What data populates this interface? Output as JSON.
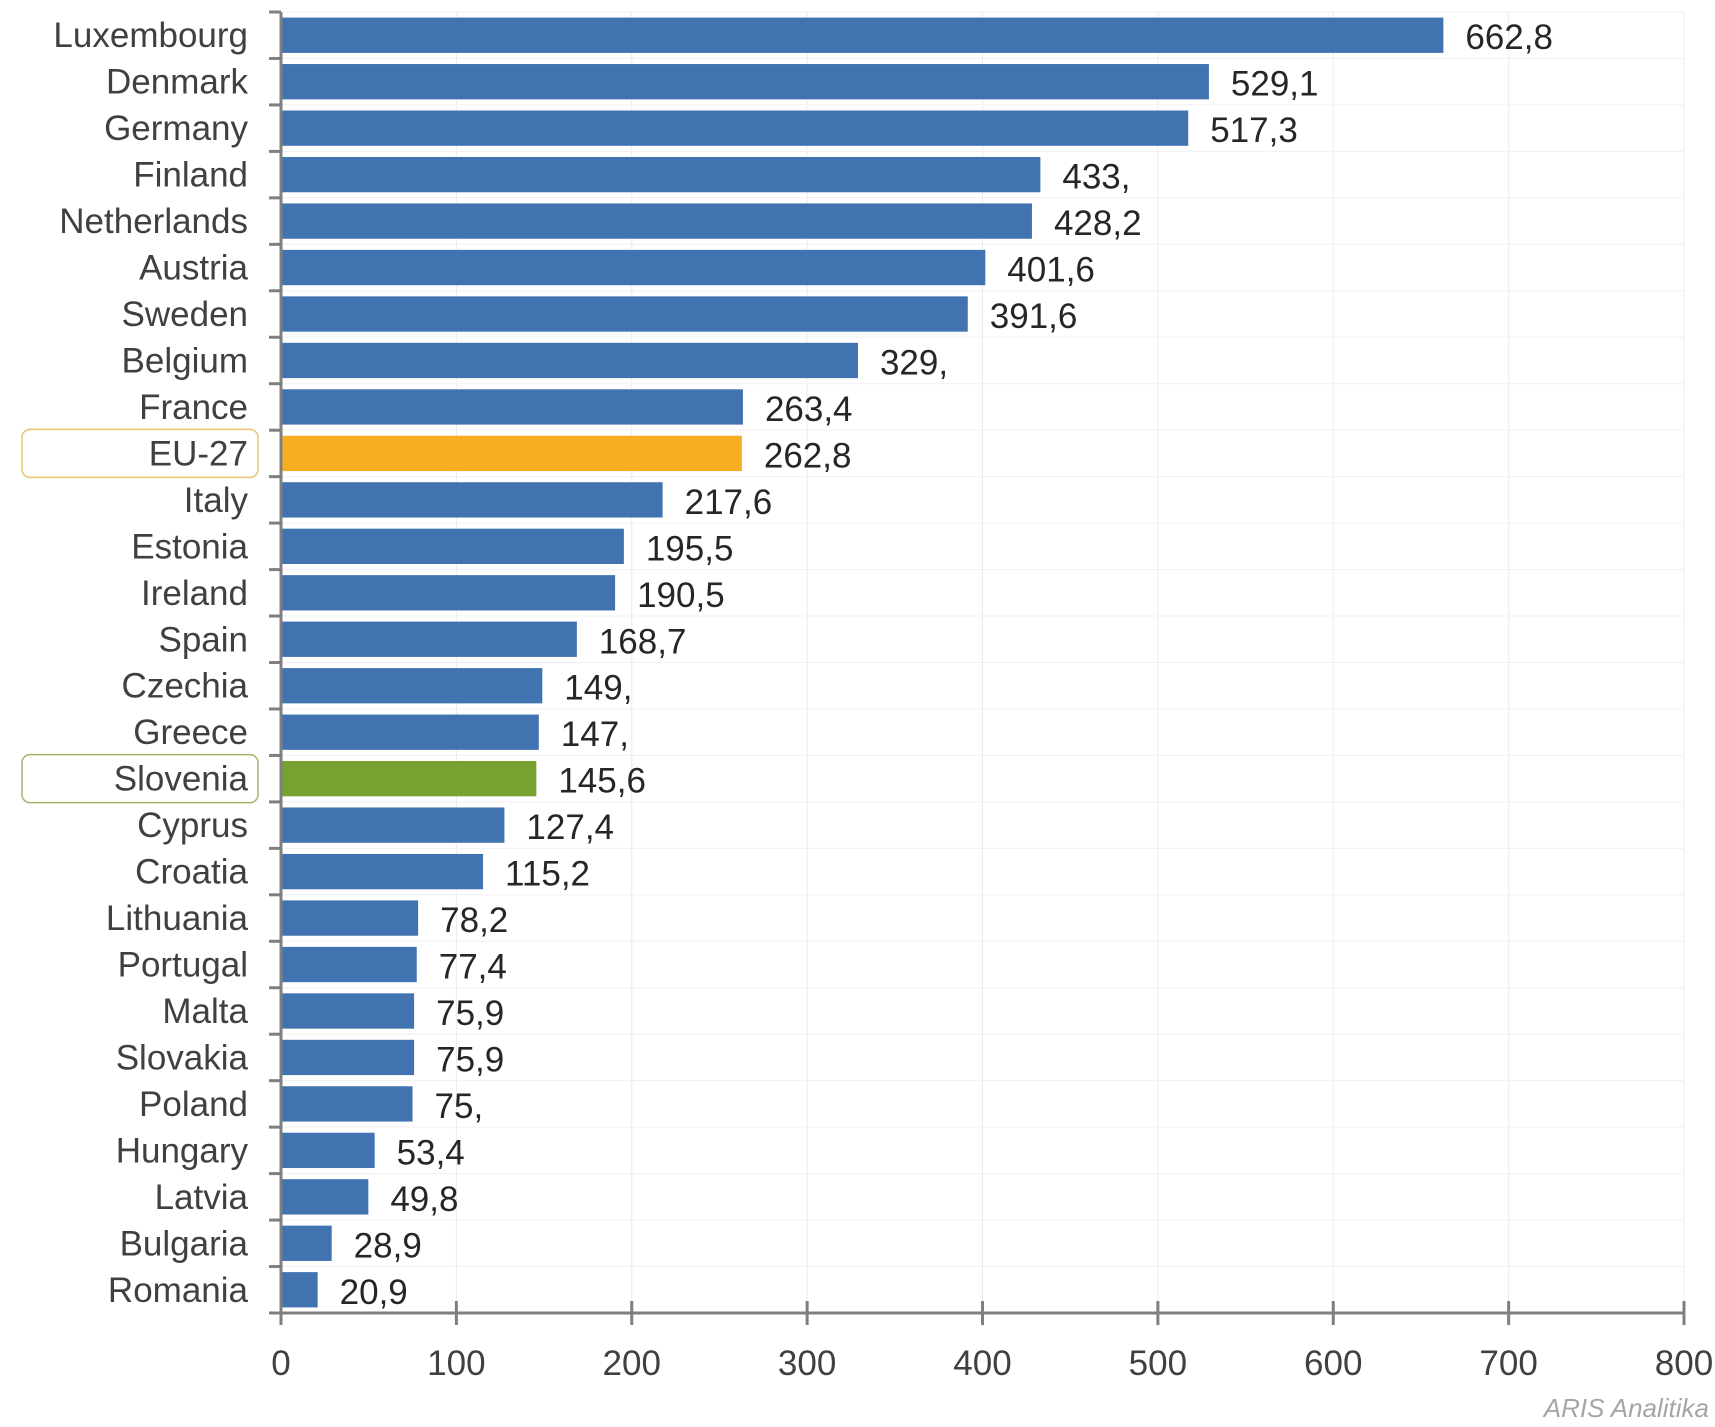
{
  "chart_data": {
    "type": "bar",
    "orientation": "horizontal",
    "categories": [
      "Luxembourg",
      "Denmark",
      "Germany",
      "Finland",
      "Netherlands",
      "Austria",
      "Sweden",
      "Belgium",
      "France",
      "EU-27",
      "Italy",
      "Estonia",
      "Ireland",
      "Spain",
      "Czechia",
      "Greece",
      "Slovenia",
      "Cyprus",
      "Croatia",
      "Lithuania",
      "Portugal",
      "Malta",
      "Slovakia",
      "Poland",
      "Hungary",
      "Latvia",
      "Bulgaria",
      "Romania"
    ],
    "values": [
      662.8,
      529.1,
      517.3,
      433.0,
      428.2,
      401.6,
      391.6,
      329.0,
      263.4,
      262.8,
      217.6,
      195.5,
      190.5,
      168.7,
      149.0,
      147.0,
      145.6,
      127.4,
      115.2,
      78.2,
      77.4,
      75.9,
      75.9,
      75.0,
      53.4,
      49.8,
      28.9,
      20.9
    ],
    "value_labels": [
      "662,8",
      "529,1",
      "517,3",
      "433,",
      "428,2",
      "401,6",
      "391,6",
      "329,",
      "263,4",
      "262,8",
      "217,6",
      "195,5",
      "190,5",
      "168,7",
      "149,",
      "147,",
      "145,6",
      "127,4",
      "115,2",
      "78,2",
      "77,4",
      "75,9",
      "75,9",
      "75,",
      "53,4",
      "49,8",
      "28,9",
      "20,9"
    ],
    "xlim": [
      0,
      800
    ],
    "xticks": [
      "0",
      "100",
      "200",
      "300",
      "400",
      "500",
      "600",
      "700",
      "800"
    ],
    "grid": true,
    "title": "",
    "xlabel": "",
    "ylabel": "",
    "colors": {
      "default_bar": "#4173b0",
      "EU-27": "#f7ae22",
      "Slovenia": "#77a22f"
    },
    "highlighted_categories": [
      "EU-27",
      "Slovenia"
    ],
    "highlight_box_colors": {
      "EU-27": "#e8c46a",
      "Slovenia": "#9eb56a"
    }
  },
  "watermark": "ARIS Analitika"
}
